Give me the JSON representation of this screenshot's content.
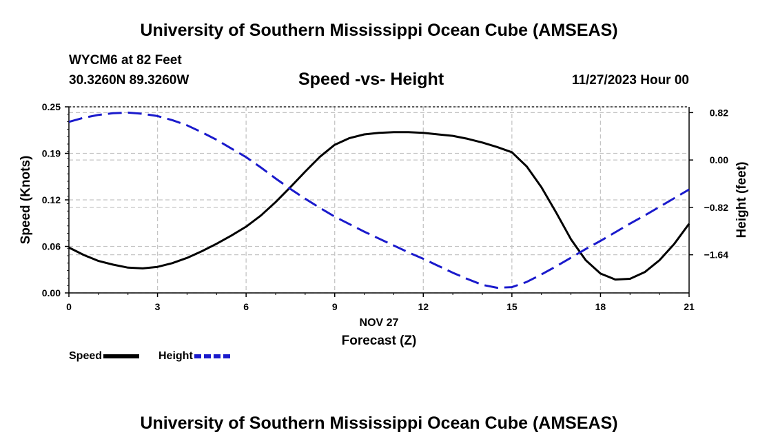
{
  "header": {
    "title": "University of Southern Mississippi Ocean Cube (AMSEAS)",
    "station": "WYCM6 at 82 Feet",
    "coords": "30.3260N  89.3260W",
    "subtitle": "Speed -vs- Height",
    "datetime": "11/27/2023 Hour 00"
  },
  "footer": {
    "title": "University of Southern Mississippi Ocean Cube (AMSEAS)"
  },
  "legend": {
    "speed_label": "Speed",
    "height_label": "Height"
  },
  "chart_data": {
    "type": "line",
    "title": "Speed -vs- Height",
    "xlabel": "Forecast (Z)",
    "xlabel_date": "NOV 27",
    "ylabel": "Speed (Knots)",
    "y2label": "Height (feet)",
    "xlim": [
      0,
      21
    ],
    "ylim": [
      0,
      0.25
    ],
    "y2lim": [
      -2.3,
      0.92
    ],
    "x_ticks": [
      0,
      3,
      6,
      9,
      12,
      15,
      18,
      21
    ],
    "y_ticks": [
      {
        "value": 0.0,
        "label": "0.00"
      },
      {
        "value": 0.0625,
        "label": "0.06"
      },
      {
        "value": 0.125,
        "label": "0.12"
      },
      {
        "value": 0.1875,
        "label": "0.19"
      },
      {
        "value": 0.25,
        "label": "0.25"
      }
    ],
    "y2_ticks": [
      {
        "value": 0.82,
        "label": "0.82"
      },
      {
        "value": 0.0,
        "label": "0.00"
      },
      {
        "value": -0.82,
        "label": "−0.82"
      },
      {
        "value": -1.64,
        "label": "−1.64"
      }
    ],
    "grid": true,
    "colors": {
      "speed": "#000000",
      "height": "#1a1acc"
    },
    "series": [
      {
        "name": "Speed",
        "axis": "left",
        "style": "solid",
        "x": [
          0,
          0.5,
          1,
          1.5,
          2,
          2.5,
          3,
          3.5,
          4,
          4.5,
          5,
          5.5,
          6,
          6.5,
          7,
          7.5,
          8,
          8.5,
          9,
          9.5,
          10,
          10.5,
          11,
          11.5,
          12,
          12.5,
          13,
          13.5,
          14,
          14.5,
          15,
          15.5,
          16,
          16.5,
          17,
          17.5,
          18,
          18.5,
          19,
          19.5,
          20,
          20.5,
          21
        ],
        "values": [
          0.061,
          0.051,
          0.043,
          0.038,
          0.034,
          0.033,
          0.035,
          0.04,
          0.047,
          0.056,
          0.066,
          0.077,
          0.089,
          0.104,
          0.122,
          0.142,
          0.163,
          0.183,
          0.199,
          0.208,
          0.213,
          0.215,
          0.216,
          0.216,
          0.215,
          0.213,
          0.211,
          0.207,
          0.202,
          0.196,
          0.189,
          0.17,
          0.142,
          0.108,
          0.072,
          0.044,
          0.026,
          0.018,
          0.019,
          0.028,
          0.044,
          0.066,
          0.093
        ]
      },
      {
        "name": "Height",
        "axis": "right",
        "style": "dashed",
        "x": [
          0,
          0.5,
          1,
          1.5,
          2,
          2.5,
          3,
          3.5,
          4,
          4.5,
          5,
          5.5,
          6,
          6.5,
          7,
          7.5,
          8,
          8.5,
          9,
          9.5,
          10,
          10.5,
          11,
          11.5,
          12,
          12.5,
          13,
          13.5,
          14,
          14.5,
          15,
          15.5,
          16,
          16.5,
          17,
          17.5,
          18,
          18.5,
          19,
          19.5,
          20,
          20.5,
          21
        ],
        "values": [
          0.66,
          0.73,
          0.78,
          0.81,
          0.82,
          0.8,
          0.76,
          0.69,
          0.6,
          0.48,
          0.35,
          0.2,
          0.05,
          -0.13,
          -0.32,
          -0.5,
          -0.67,
          -0.83,
          -0.98,
          -1.11,
          -1.24,
          -1.36,
          -1.48,
          -1.6,
          -1.71,
          -1.83,
          -1.95,
          -2.06,
          -2.16,
          -2.21,
          -2.2,
          -2.11,
          -1.98,
          -1.84,
          -1.69,
          -1.54,
          -1.4,
          -1.25,
          -1.1,
          -0.96,
          -0.81,
          -0.66,
          -0.51
        ]
      }
    ]
  }
}
